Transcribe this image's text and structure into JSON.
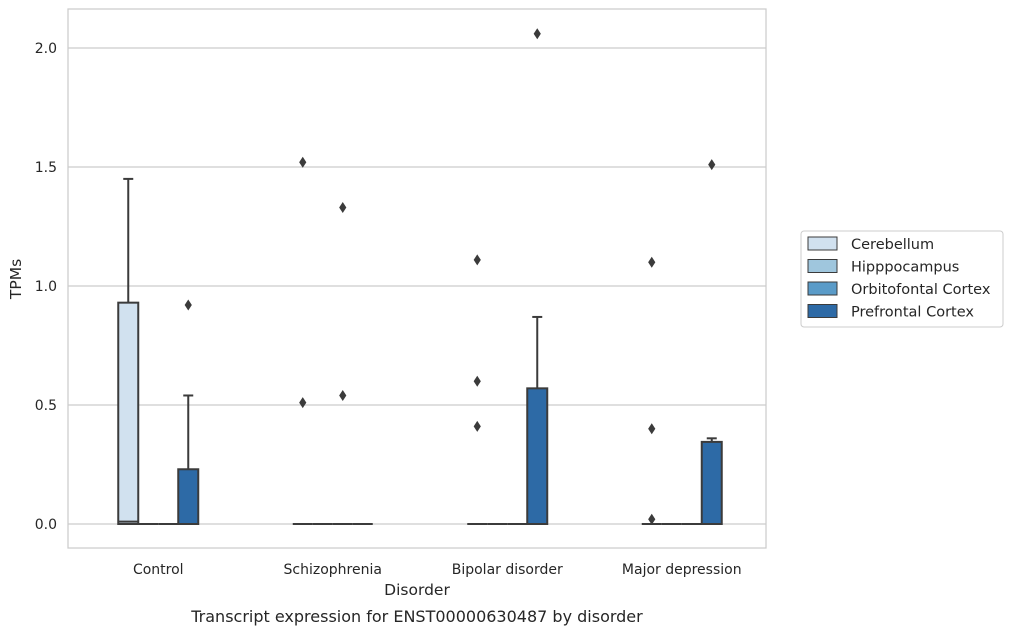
{
  "chart_data": {
    "type": "box",
    "title": "",
    "xlabel": "Disorder",
    "ylabel": "TPMs",
    "caption": "Transcript expression for ENST00000630487 by disorder",
    "ylim": [
      -0.1,
      2.17
    ],
    "yticks": [
      "0.0",
      "0.5",
      "1.0",
      "1.5",
      "2.0"
    ],
    "ytick_values": [
      0,
      0.5,
      1.0,
      1.5,
      2.0
    ],
    "grid": "horizontal",
    "legend_position": "right",
    "categories": [
      "Control",
      "Schizophrenia",
      "Bipolar disorder",
      "Major depression"
    ],
    "series": [
      {
        "name": "Cerebellum",
        "color": "#d1e1ef",
        "boxes": [
          {
            "q1": 0.0,
            "median": 0.01,
            "q3": 0.93,
            "whisker_low": 0.0,
            "whisker_high": 1.45,
            "outliers": []
          },
          {
            "q1": 0.0,
            "median": 0.0,
            "q3": 0.0,
            "whisker_low": 0.0,
            "whisker_high": 0.0,
            "outliers": [
              0.51,
              1.52
            ]
          },
          {
            "q1": 0.0,
            "median": 0.0,
            "q3": 0.0,
            "whisker_low": 0.0,
            "whisker_high": 0.0,
            "outliers": [
              0.41,
              0.6,
              1.11
            ]
          },
          {
            "q1": 0.0,
            "median": 0.0,
            "q3": 0.0,
            "whisker_low": 0.0,
            "whisker_high": 0.0,
            "outliers": [
              0.02,
              0.4,
              1.1
            ]
          }
        ]
      },
      {
        "name": "Hipppocampus",
        "color": "#9fc6dd",
        "boxes": [
          {
            "q1": 0.0,
            "median": 0.0,
            "q3": 0.0,
            "whisker_low": 0.0,
            "whisker_high": 0.0,
            "outliers": []
          },
          {
            "q1": 0.0,
            "median": 0.0,
            "q3": 0.0,
            "whisker_low": 0.0,
            "whisker_high": 0.0,
            "outliers": []
          },
          {
            "q1": 0.0,
            "median": 0.0,
            "q3": 0.0,
            "whisker_low": 0.0,
            "whisker_high": 0.0,
            "outliers": []
          },
          {
            "q1": 0.0,
            "median": 0.0,
            "q3": 0.0,
            "whisker_low": 0.0,
            "whisker_high": 0.0,
            "outliers": []
          }
        ]
      },
      {
        "name": "Orbitofontal Cortex",
        "color": "#5a9bc8",
        "boxes": [
          {
            "q1": 0.0,
            "median": 0.0,
            "q3": 0.0,
            "whisker_low": 0.0,
            "whisker_high": 0.0,
            "outliers": []
          },
          {
            "q1": 0.0,
            "median": 0.0,
            "q3": 0.0,
            "whisker_low": 0.0,
            "whisker_high": 0.0,
            "outliers": [
              0.54,
              1.33
            ]
          },
          {
            "q1": 0.0,
            "median": 0.0,
            "q3": 0.0,
            "whisker_low": 0.0,
            "whisker_high": 0.0,
            "outliers": []
          },
          {
            "q1": 0.0,
            "median": 0.0,
            "q3": 0.0,
            "whisker_low": 0.0,
            "whisker_high": 0.0,
            "outliers": []
          }
        ]
      },
      {
        "name": "Prefrontal Cortex",
        "color": "#2d6aa6",
        "boxes": [
          {
            "q1": 0.0,
            "median": 0.0,
            "q3": 0.23,
            "whisker_low": 0.0,
            "whisker_high": 0.54,
            "outliers": [
              0.92
            ]
          },
          {
            "q1": 0.0,
            "median": 0.0,
            "q3": 0.0,
            "whisker_low": 0.0,
            "whisker_high": 0.0,
            "outliers": []
          },
          {
            "q1": 0.0,
            "median": 0.0,
            "q3": 0.57,
            "whisker_low": 0.0,
            "whisker_high": 0.87,
            "outliers": [
              2.06
            ]
          },
          {
            "q1": 0.0,
            "median": 0.0,
            "q3": 0.345,
            "whisker_low": 0.0,
            "whisker_high": 0.36,
            "outliers": [
              1.51
            ]
          }
        ]
      }
    ]
  }
}
